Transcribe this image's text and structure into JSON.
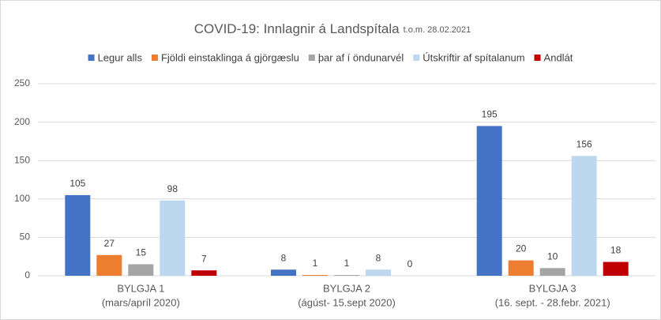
{
  "chart_data": {
    "type": "bar",
    "title": "COVID-19: Innlagnir á Landspítala",
    "subtitle": "t.o.m. 28.02.2021",
    "categories": [
      [
        "BYLGJA 1",
        "(mars/apríl 2020)"
      ],
      [
        "BYLGJA 2",
        "(ágúst- 15.sept 2020)"
      ],
      [
        "BYLGJA 3",
        "(16. sept. - 28.febr. 2021)"
      ]
    ],
    "series": [
      {
        "name": "Legur alls",
        "color": "#4472c4",
        "values": [
          105,
          8,
          195
        ]
      },
      {
        "name": "Fjöldi einstaklinga á gjörgæslu",
        "color": "#ed7d31",
        "values": [
          27,
          1,
          20
        ]
      },
      {
        "name": "þar af í öndunarvél",
        "color": "#a5a5a5",
        "values": [
          15,
          1,
          10
        ]
      },
      {
        "name": "Útskriftir af spítalanum",
        "color": "#bdd7ee",
        "values": [
          98,
          8,
          156
        ]
      },
      {
        "name": "Andlát",
        "color": "#c00000",
        "values": [
          7,
          0,
          18
        ]
      }
    ],
    "ylim": [
      0,
      250
    ],
    "yticks": [
      0,
      50,
      100,
      150,
      200,
      250
    ],
    "grid": true,
    "legend": "top"
  }
}
